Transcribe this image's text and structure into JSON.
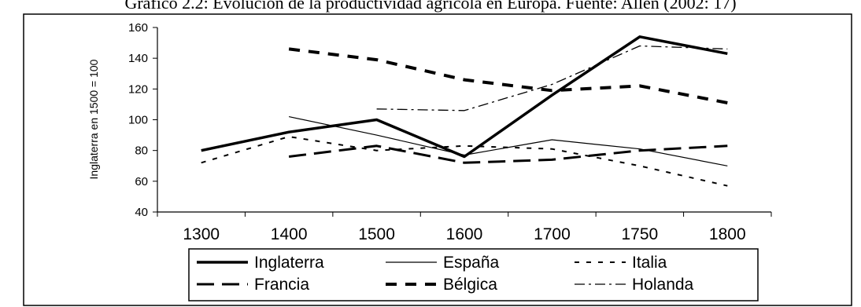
{
  "caption": "Gráfico 2.2: Evolución de la productividad agrícola en Europa. Fuente: Allen (2002: 17)",
  "colors": {
    "ink": "#000000",
    "background": "#ffffff"
  },
  "chart_data": {
    "type": "line",
    "title": "",
    "xlabel": "",
    "ylabel": "Inglaterra en 1500 = 100",
    "x": [
      "1300",
      "1400",
      "1500",
      "1600",
      "1700",
      "1750",
      "1800"
    ],
    "ylim": [
      40,
      160
    ],
    "yticks": [
      40,
      60,
      80,
      100,
      120,
      140,
      160
    ],
    "grid": false,
    "legend_position": "bottom",
    "series": [
      {
        "name": "Inglaterra",
        "style": "thick-solid",
        "values": [
          80,
          92,
          100,
          76,
          116,
          154,
          143
        ]
      },
      {
        "name": "España",
        "style": "thin-solid",
        "values": [
          null,
          102,
          90,
          77,
          87,
          81,
          70
        ]
      },
      {
        "name": "Italia",
        "style": "short-dash",
        "values": [
          72,
          89,
          80,
          83,
          81,
          70,
          57
        ]
      },
      {
        "name": "Francia",
        "style": "long-dash",
        "values": [
          null,
          76,
          83,
          72,
          74,
          80,
          83
        ]
      },
      {
        "name": "Bélgica",
        "style": "thick-dash",
        "values": [
          null,
          146,
          139,
          126,
          119,
          122,
          111
        ]
      },
      {
        "name": "Holanda",
        "style": "dash-dot",
        "values": [
          null,
          null,
          107,
          106,
          123,
          148,
          146
        ]
      }
    ]
  }
}
